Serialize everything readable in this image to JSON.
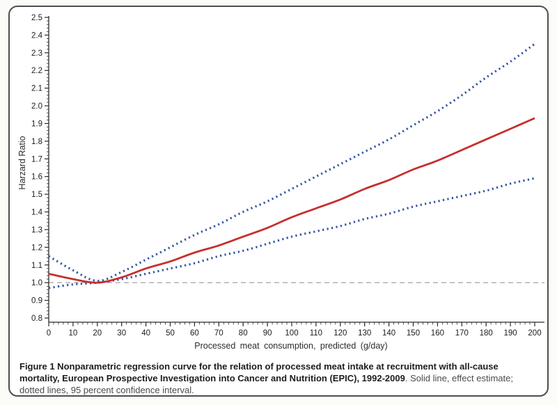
{
  "chart_data": {
    "type": "line",
    "title": "",
    "xlabel": "Processed meat consumption, predicted (g/day)",
    "ylabel": "Harzard Ratio",
    "xlim": [
      0,
      200
    ],
    "ylim": [
      0.8,
      2.5
    ],
    "x_ticks": [
      0,
      10,
      20,
      30,
      40,
      50,
      60,
      70,
      80,
      90,
      100,
      110,
      120,
      130,
      140,
      150,
      160,
      170,
      180,
      190,
      200
    ],
    "y_ticks": [
      0.8,
      0.9,
      1.0,
      1.1,
      1.2,
      1.3,
      1.4,
      1.5,
      1.6,
      1.7,
      1.8,
      1.9,
      2.0,
      2.1,
      2.2,
      2.3,
      2.4,
      2.5
    ],
    "x_minor_per_major": 5,
    "y_minor_per_major": 5,
    "grid": false,
    "legend_position": "none",
    "x": [
      0,
      10,
      20,
      30,
      40,
      50,
      60,
      70,
      80,
      90,
      100,
      110,
      120,
      130,
      140,
      150,
      160,
      170,
      180,
      190,
      200
    ],
    "series": [
      {
        "name": "95 percent confidence interval (upper)",
        "style": "dotted",
        "color": "#2f55a4",
        "values": [
          1.15,
          1.07,
          1.01,
          1.06,
          1.13,
          1.2,
          1.27,
          1.33,
          1.4,
          1.46,
          1.53,
          1.6,
          1.67,
          1.74,
          1.81,
          1.89,
          1.97,
          2.06,
          2.16,
          2.25,
          2.35
        ]
      },
      {
        "name": "95 percent confidence interval (lower)",
        "style": "dotted",
        "color": "#2f55a4",
        "values": [
          0.97,
          0.99,
          1.0,
          1.02,
          1.05,
          1.08,
          1.11,
          1.15,
          1.18,
          1.22,
          1.26,
          1.29,
          1.32,
          1.36,
          1.39,
          1.43,
          1.46,
          1.49,
          1.52,
          1.56,
          1.59
        ]
      },
      {
        "name": "Effect estimate",
        "style": "solid",
        "color": "#c62f2c",
        "values": [
          1.05,
          1.02,
          1.0,
          1.03,
          1.08,
          1.12,
          1.17,
          1.21,
          1.26,
          1.31,
          1.37,
          1.42,
          1.47,
          1.53,
          1.58,
          1.64,
          1.69,
          1.75,
          1.81,
          1.87,
          1.93
        ]
      }
    ],
    "reference_line": {
      "y": 1.0,
      "style": "dashed",
      "color": "#8a8a8a"
    }
  },
  "axis_text": {
    "xlabel": "Processed meat consumption, predicted (g/day)",
    "ylabel": "Harzard Ratio"
  },
  "caption": {
    "bold_text": "Figure 1 Nonparametric regression curve for the relation of processed meat intake at recruitment with all-cause mortality, European Prospective Investigation into Cancer and Nutrition (EPIC), 1992-2009",
    "normal_text": ". Solid line, effect estimate; dotted lines, 95 percent confidence interval."
  },
  "colors": {
    "effect_line": "#c62f2c",
    "ci_line": "#2f55a4",
    "reference_line": "#8a8a8a",
    "axis": "#2b2b2b",
    "box_border": "#4d4d4d"
  }
}
